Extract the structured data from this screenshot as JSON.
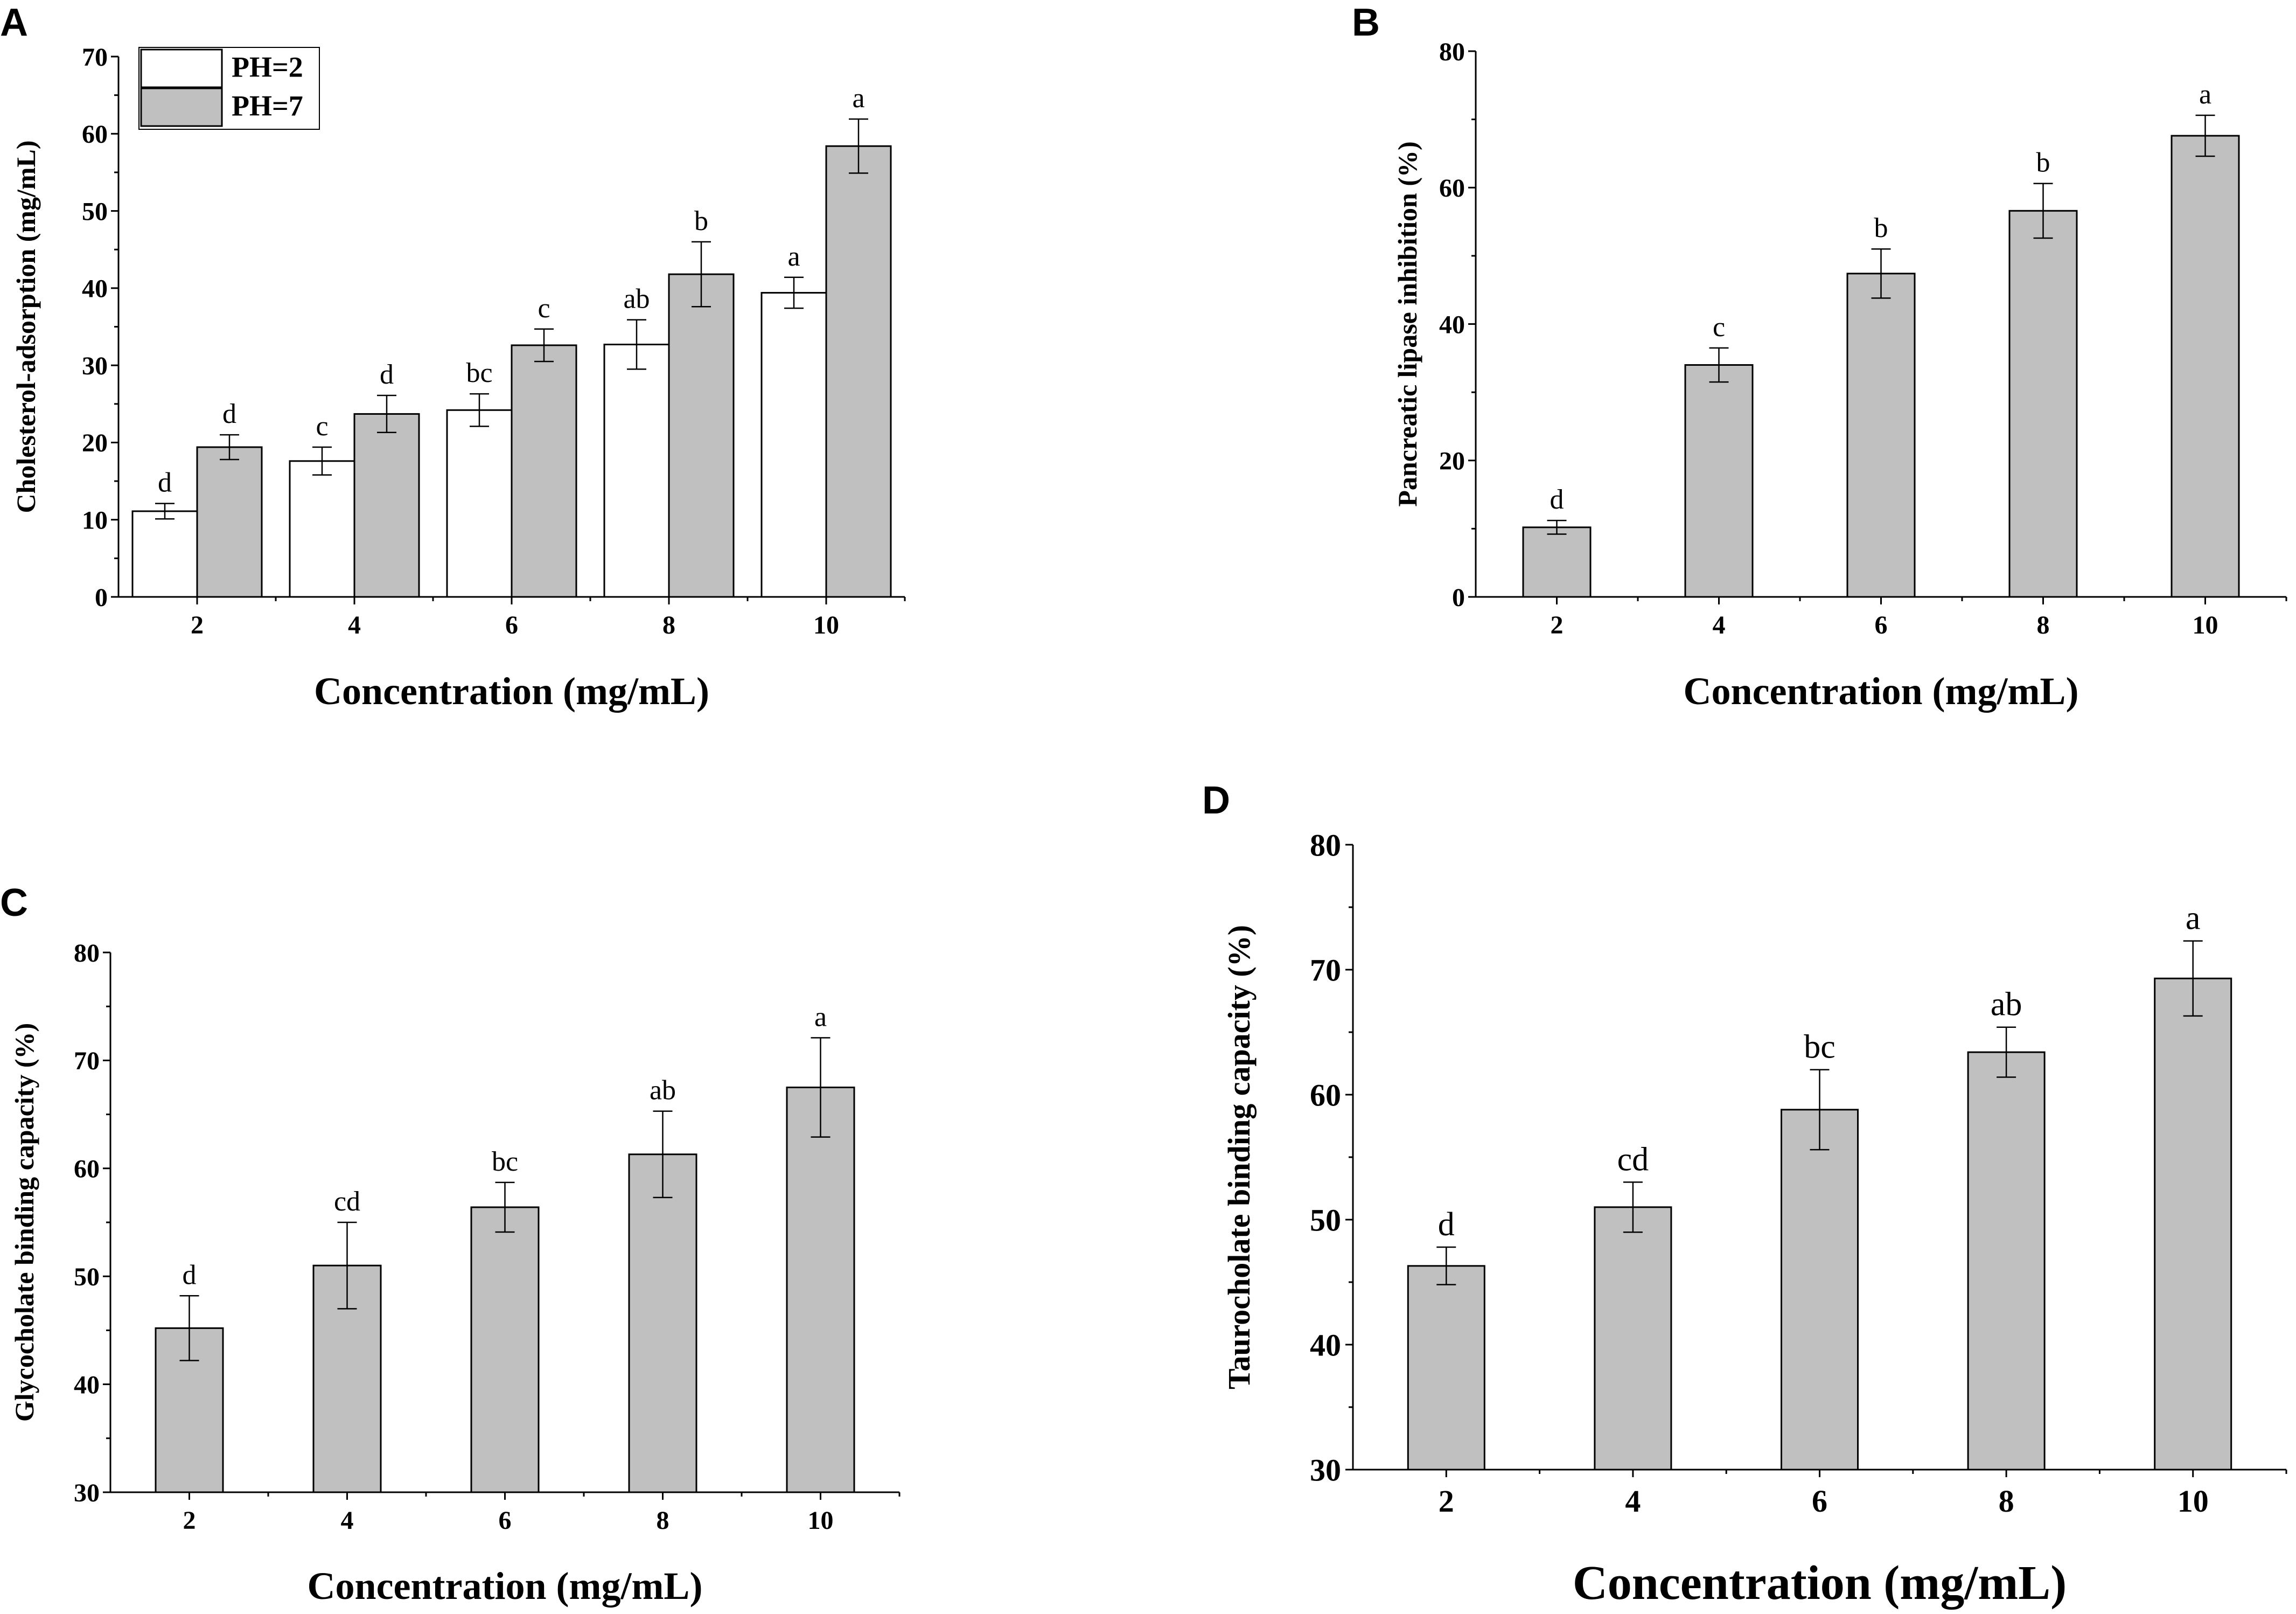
{
  "figure": {
    "panel_letters": [
      "A",
      "B",
      "C",
      "D"
    ]
  },
  "chart_data": [
    {
      "panel": "A",
      "type": "bar",
      "title": "",
      "xlabel": "Concentration (mg/mL)",
      "ylabel": "Cholesterol-adsorption (mg/mL)",
      "categories": [
        "2",
        "4",
        "6",
        "8",
        "10"
      ],
      "ylim": [
        0,
        70
      ],
      "yticks": [
        0,
        10,
        20,
        30,
        40,
        50,
        60,
        70
      ],
      "legend": {
        "position": "top-left"
      },
      "series": [
        {
          "name": "PH=2",
          "color": "#ffffff",
          "values": [
            11.1,
            17.6,
            24.2,
            32.7,
            39.4
          ],
          "errors": [
            1.0,
            1.8,
            2.1,
            3.2,
            2.0
          ],
          "letters": [
            "d",
            "c",
            "bc",
            "ab",
            "a"
          ]
        },
        {
          "name": "PH=7",
          "color": "#c0c0c0",
          "values": [
            19.4,
            23.7,
            32.6,
            41.8,
            58.4
          ],
          "errors": [
            1.6,
            2.4,
            2.1,
            4.2,
            3.5
          ],
          "letters": [
            "d",
            "d",
            "c",
            "b",
            "a"
          ]
        }
      ]
    },
    {
      "panel": "B",
      "type": "bar",
      "title": "",
      "xlabel": "Concentration (mg/mL)",
      "ylabel": "Pancreatic lipase inhibition (%)",
      "categories": [
        "2",
        "4",
        "6",
        "8",
        "10"
      ],
      "ylim": [
        0,
        80
      ],
      "yticks": [
        0,
        20,
        40,
        60,
        80
      ],
      "series": [
        {
          "name": "",
          "color": "#c0c0c0",
          "values": [
            10.2,
            34.0,
            47.4,
            56.6,
            67.6
          ],
          "errors": [
            1.0,
            2.5,
            3.6,
            4.0,
            3.0
          ],
          "letters": [
            "d",
            "c",
            "b",
            "b",
            "a"
          ]
        }
      ]
    },
    {
      "panel": "C",
      "type": "bar",
      "title": "",
      "xlabel": "Concentration (mg/mL)",
      "ylabel": "Glycocholate binding capacity (%)",
      "categories": [
        "2",
        "4",
        "6",
        "8",
        "10"
      ],
      "ylim": [
        30,
        80
      ],
      "yticks": [
        30,
        40,
        50,
        60,
        70,
        80
      ],
      "series": [
        {
          "name": "",
          "color": "#c0c0c0",
          "values": [
            45.2,
            51.0,
            56.4,
            61.3,
            67.5
          ],
          "errors": [
            3.0,
            4.0,
            2.3,
            4.0,
            4.6
          ],
          "letters": [
            "d",
            "cd",
            "bc",
            "ab",
            "a"
          ]
        }
      ]
    },
    {
      "panel": "D",
      "type": "bar",
      "title": "",
      "xlabel": "Concentration (mg/mL)",
      "ylabel": "Taurocholate binding capacity (%)",
      "categories": [
        "2",
        "4",
        "6",
        "8",
        "10"
      ],
      "ylim": [
        30,
        80
      ],
      "yticks": [
        30,
        40,
        50,
        60,
        70,
        80
      ],
      "series": [
        {
          "name": "",
          "color": "#c0c0c0",
          "values": [
            46.3,
            51.0,
            58.8,
            63.4,
            69.3
          ],
          "errors": [
            1.5,
            2.0,
            3.2,
            2.0,
            3.0
          ],
          "letters": [
            "d",
            "cd",
            "bc",
            "ab",
            "a"
          ]
        }
      ]
    }
  ]
}
